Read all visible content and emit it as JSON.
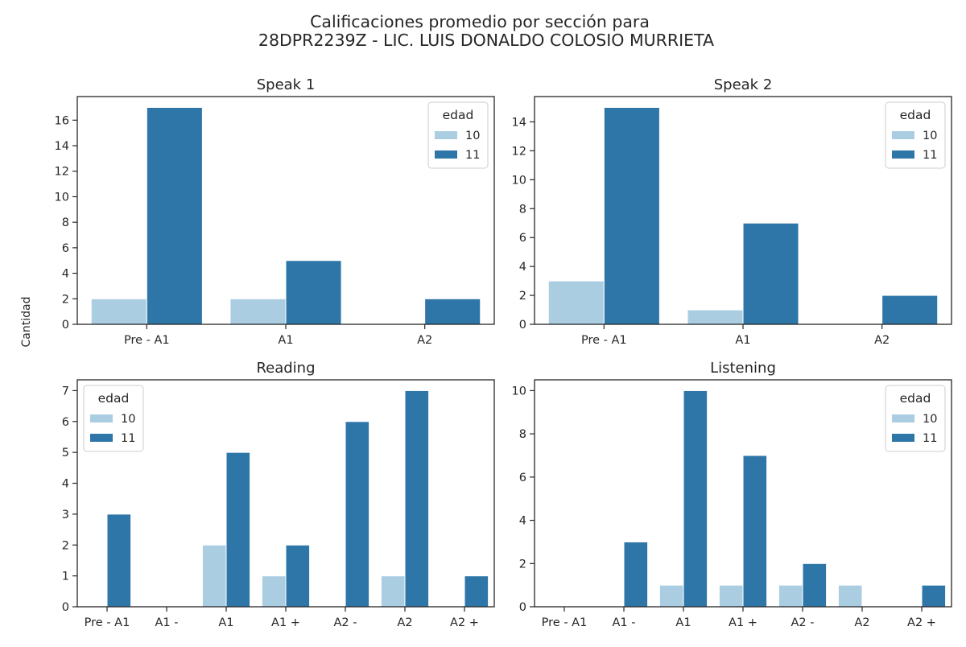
{
  "figure": {
    "title_line1": "Calificaciones promedio por sección para",
    "title_line2": "28DPR2239Z - LIC. LUIS DONALDO COLOSIO MURRIETA",
    "ylabel": "Cantidad"
  },
  "colors": {
    "s10": "#abcde2",
    "s11": "#2f76a8",
    "axis": "#262626"
  },
  "chart_data": [
    {
      "type": "bar",
      "title": "Speak 1",
      "categories": [
        "Pre - A1",
        "A1",
        "A2"
      ],
      "series": [
        {
          "name": "10",
          "values": [
            2,
            2,
            0
          ]
        },
        {
          "name": "11",
          "values": [
            17,
            5,
            2
          ]
        }
      ],
      "ylim": [
        0,
        17.85
      ],
      "yticks": [
        0,
        2,
        4,
        6,
        8,
        10,
        12,
        14,
        16
      ],
      "legend": {
        "title": "edad",
        "position": "upper right"
      }
    },
    {
      "type": "bar",
      "title": "Speak 2",
      "categories": [
        "Pre - A1",
        "A1",
        "A2"
      ],
      "series": [
        {
          "name": "10",
          "values": [
            3,
            1,
            0
          ]
        },
        {
          "name": "11",
          "values": [
            15,
            7,
            2
          ]
        }
      ],
      "ylim": [
        0,
        15.75
      ],
      "yticks": [
        0,
        2,
        4,
        6,
        8,
        10,
        12,
        14
      ],
      "legend": {
        "title": "edad",
        "position": "upper right"
      }
    },
    {
      "type": "bar",
      "title": "Reading",
      "categories": [
        "Pre - A1",
        "A1 -",
        "A1",
        "A1 +",
        "A2 -",
        "A2",
        "A2 +"
      ],
      "series": [
        {
          "name": "10",
          "values": [
            0,
            0,
            2,
            1,
            0,
            1,
            0
          ]
        },
        {
          "name": "11",
          "values": [
            3,
            0,
            5,
            2,
            6,
            7,
            1
          ]
        }
      ],
      "ylim": [
        0,
        7.35
      ],
      "yticks": [
        0,
        1,
        2,
        3,
        4,
        5,
        6,
        7
      ],
      "legend": {
        "title": "edad",
        "position": "upper left"
      }
    },
    {
      "type": "bar",
      "title": "Listening",
      "categories": [
        "Pre - A1",
        "A1 -",
        "A1",
        "A1 +",
        "A2 -",
        "A2",
        "A2 +"
      ],
      "series": [
        {
          "name": "10",
          "values": [
            0,
            0,
            1,
            1,
            1,
            1,
            0
          ]
        },
        {
          "name": "11",
          "values": [
            0,
            3,
            10,
            7,
            2,
            0,
            1
          ]
        }
      ],
      "ylim": [
        0,
        10.5
      ],
      "yticks": [
        0,
        2,
        4,
        6,
        8,
        10
      ],
      "legend": {
        "title": "edad",
        "position": "upper right"
      }
    }
  ]
}
